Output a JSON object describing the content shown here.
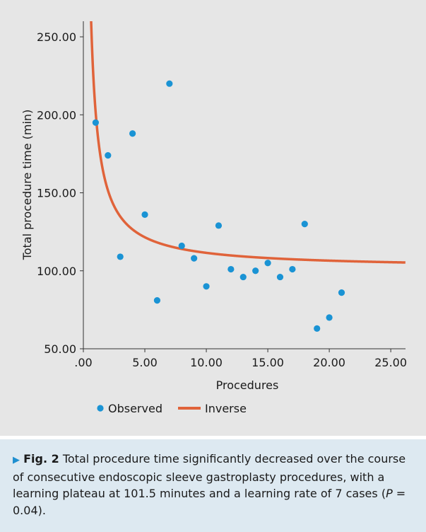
{
  "chart_data": {
    "type": "scatter",
    "xlabel": "Procedures",
    "ylabel": "Total procedure time (min)",
    "xlim": [
      0,
      26.2
    ],
    "ylim": [
      50,
      260
    ],
    "x_ticks": [
      0,
      5,
      10,
      15,
      20,
      25
    ],
    "x_tick_labels": [
      ".00",
      "5.00",
      "10.00",
      "15.00",
      "20.00",
      "25.00"
    ],
    "y_ticks": [
      50,
      100,
      150,
      200,
      250
    ],
    "y_tick_labels": [
      "50.00",
      "100.00",
      "150.00",
      "200.00",
      "250.00"
    ],
    "grid": false,
    "legend_position": "bottom",
    "series": [
      {
        "name": "Observed",
        "kind": "scatter",
        "color": "#1a93d4",
        "x": [
          1,
          2,
          3,
          4,
          5,
          6,
          7,
          8,
          9,
          10,
          11,
          12,
          13,
          14,
          15,
          16,
          17,
          18,
          19,
          20,
          21
        ],
        "y": [
          195,
          174,
          109,
          188,
          136,
          81,
          220,
          116,
          108,
          90,
          129,
          101,
          96,
          100,
          105,
          96,
          101,
          130,
          63,
          70,
          86
        ]
      },
      {
        "name": "Inverse",
        "kind": "curve",
        "color": "#e0633a",
        "equation": "y = a + b / x",
        "a": 101.5,
        "b": 100
      }
    ]
  },
  "caption": {
    "marker": "▶",
    "label": "Fig. 2",
    "text_part1": "Total procedure time significantly decreased over the course of consecutive endoscopic sleeve gastroplasty procedures, with a learning plateau at 101.5 minutes and a learning rate of 7 cases (",
    "p_symbol": "P",
    "text_part2": " = 0.04)."
  }
}
